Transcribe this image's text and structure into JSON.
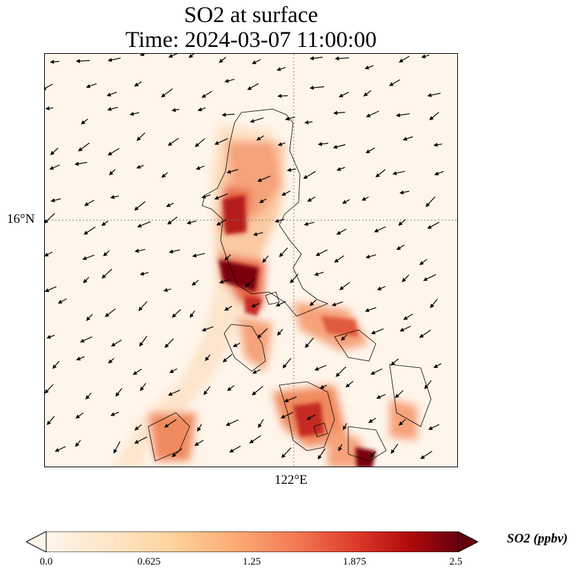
{
  "map": {
    "title_line1": "SO2 at surface",
    "title_line2": "Time: 2024-03-07 11:00:00",
    "lat_label": "16°N",
    "lon_label": "122°E"
  },
  "colorbar": {
    "label": "SO2 (ppbv)",
    "ticks": [
      "0.0",
      "0.625",
      "1.25",
      "1.875",
      "2.5"
    ],
    "min": 0.0,
    "max": 2.5,
    "colormap": "OrRd",
    "extend": "both"
  },
  "colors": {
    "low": "#fff5eb",
    "mid": "#f4a261",
    "high": "#a50f15",
    "max": "#67000d",
    "coast": "#000000",
    "grid": "#7f7f7f"
  }
}
